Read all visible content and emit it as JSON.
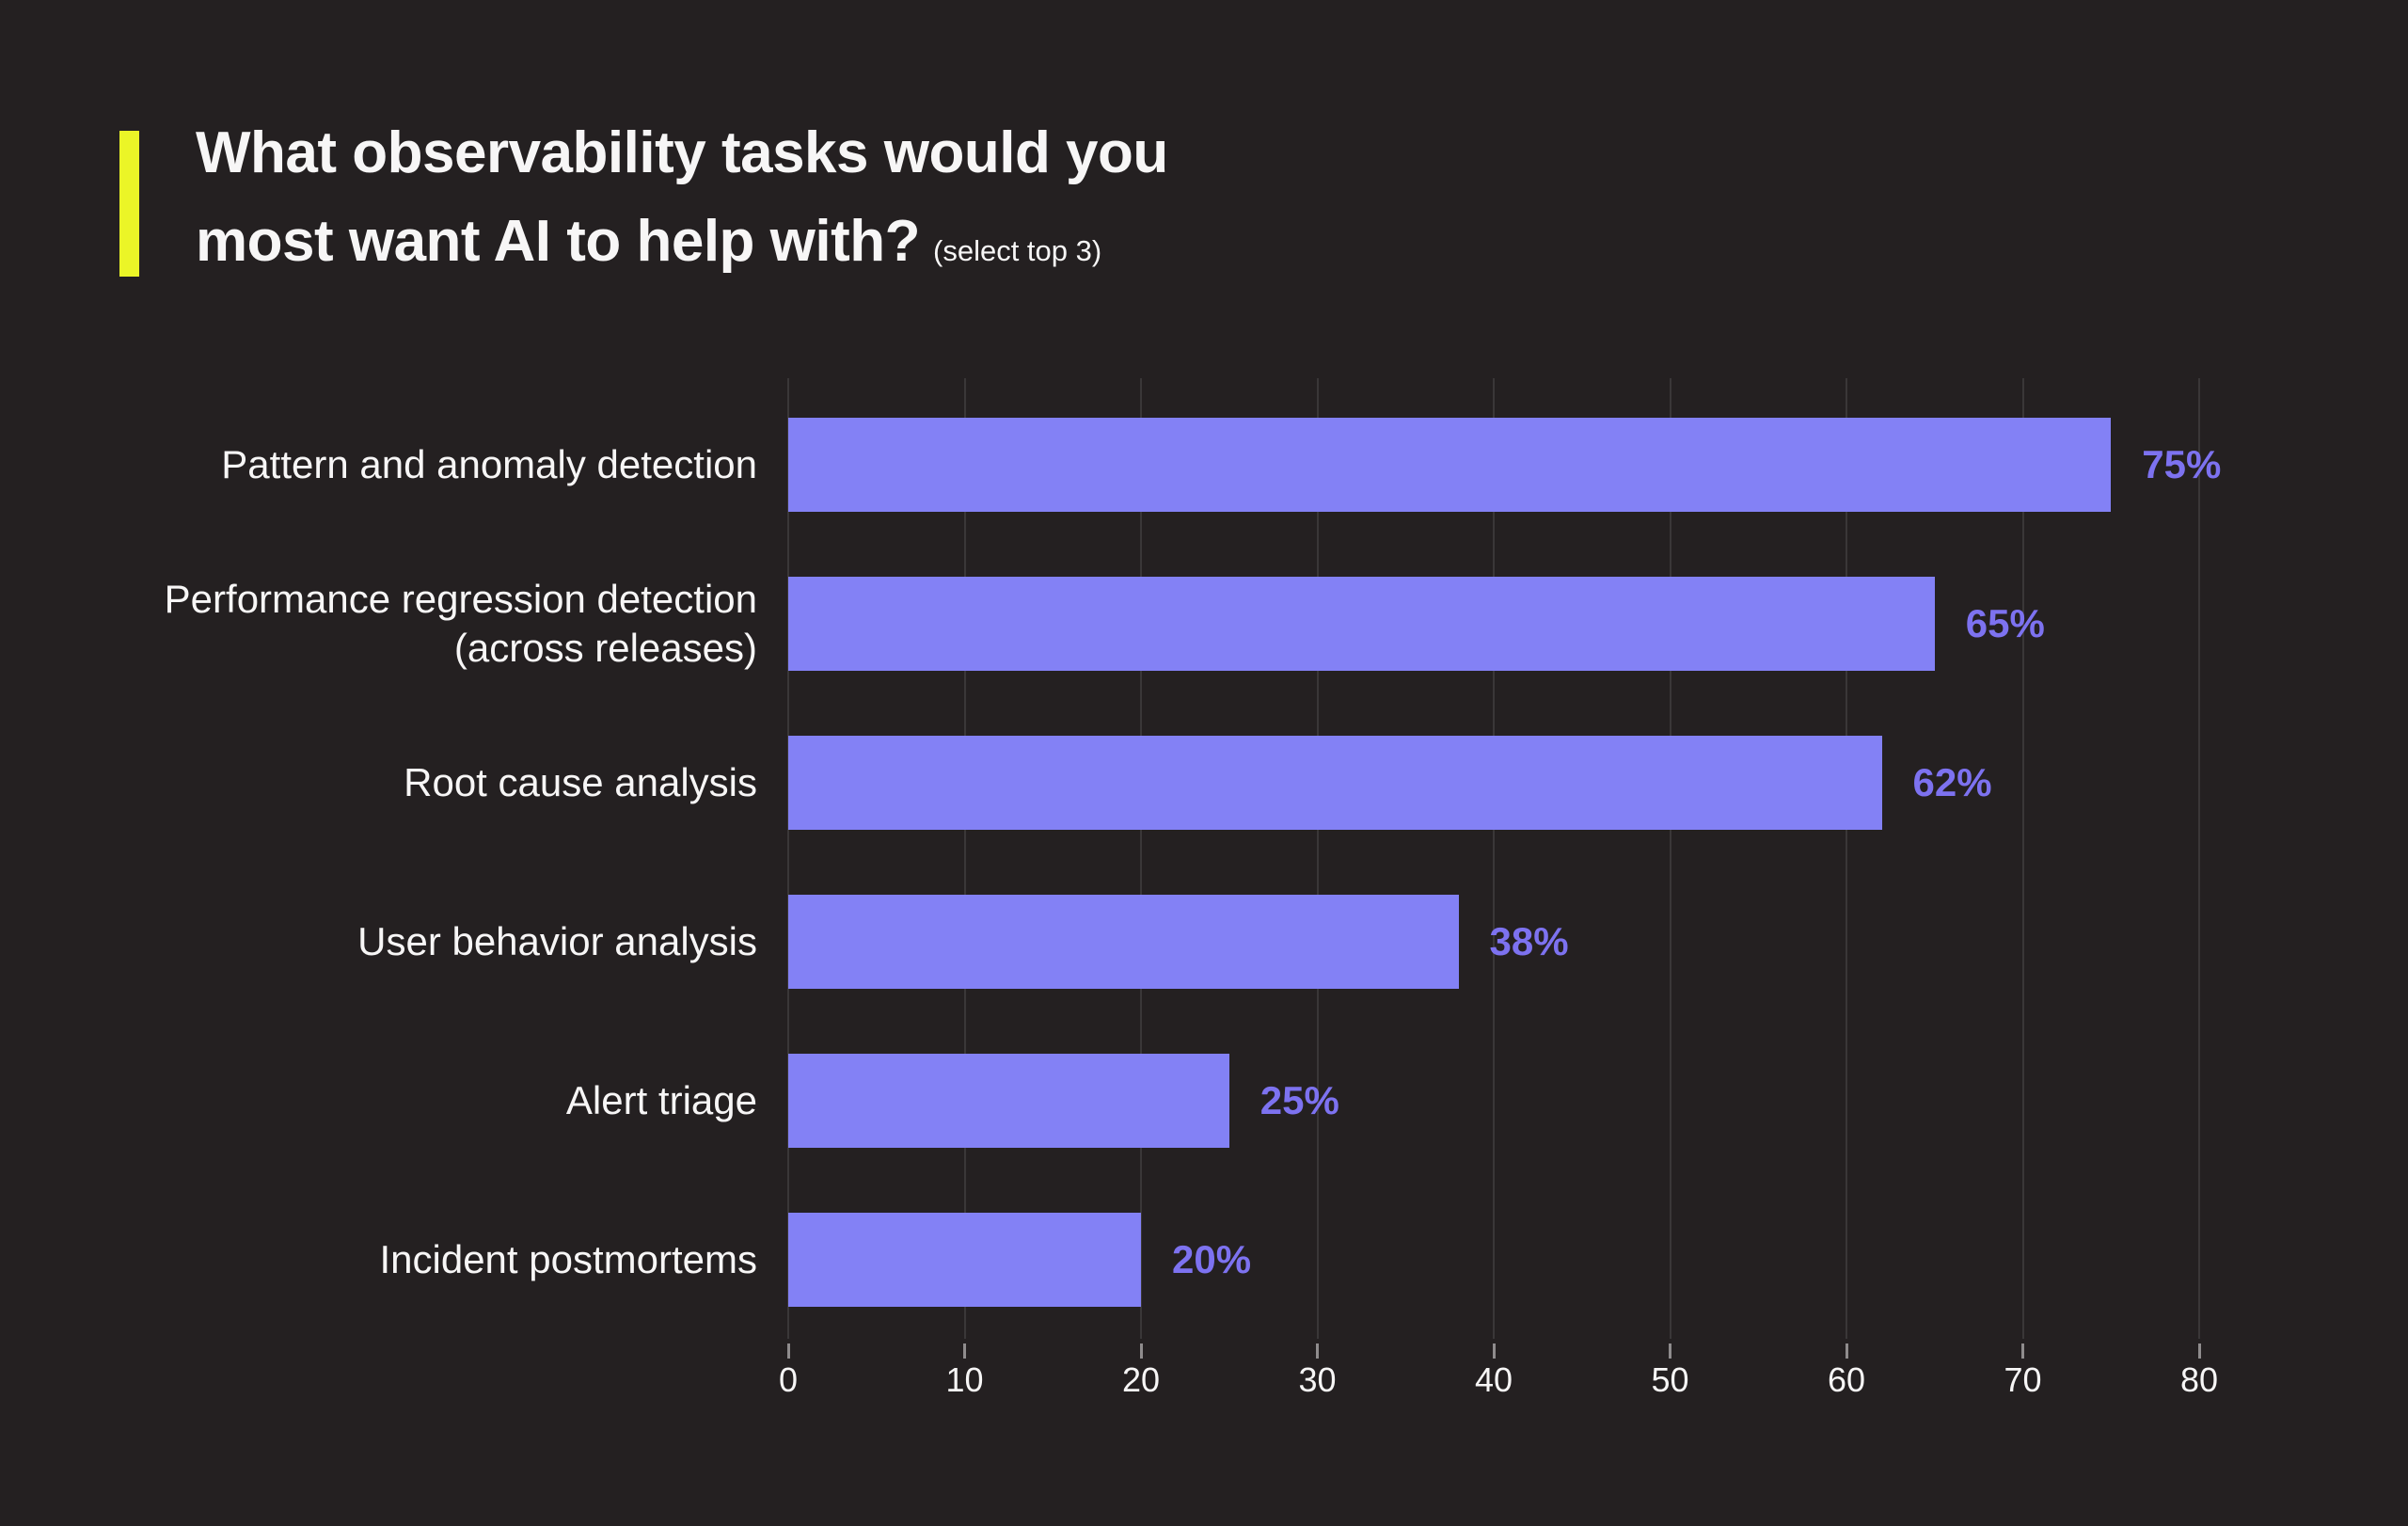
{
  "header": {
    "title_line1": "What observability tasks would you",
    "title_line2": "most want AI to help with?",
    "subtitle": "(select top 3)"
  },
  "colors": {
    "background": "#242021",
    "accent_yellow": "#EBF527",
    "bar_purple": "#8381F5",
    "value_label_purple": "#7D72F0",
    "grid_line": "#3A3738",
    "tick_mark": "#8F8C8D",
    "text_primary": "#F7F6F6"
  },
  "chart_data": {
    "type": "bar",
    "orientation": "horizontal",
    "title": "What observability tasks would you most want AI to help with?",
    "subtitle": "(select top 3)",
    "categories": [
      "Pattern and anomaly detection",
      "Performance regression detection (across releases)",
      "Root cause analysis",
      "User behavior analysis",
      "Alert triage",
      "Incident postmortems"
    ],
    "values": [
      75,
      65,
      62,
      38,
      25,
      20
    ],
    "value_labels": [
      "75%",
      "65%",
      "62%",
      "38%",
      "25%",
      "20%"
    ],
    "xlabel": "",
    "ylabel": "",
    "x_ticks": [
      0,
      10,
      20,
      30,
      40,
      50,
      60,
      70,
      80
    ],
    "xlim": [
      0,
      80
    ],
    "grid": "vertical gridlines at each x tick, behind bars",
    "legend": "none"
  }
}
